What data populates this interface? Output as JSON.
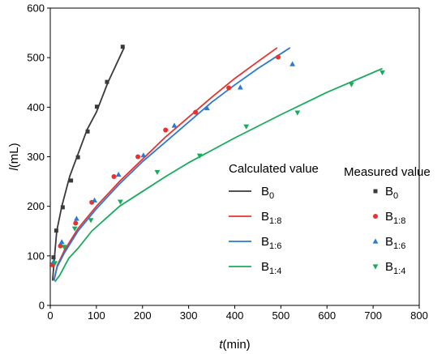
{
  "chart_data": {
    "type": "line",
    "xlabel": "t(min)",
    "ylabel": "l(mL)",
    "xlim": [
      0,
      800
    ],
    "ylim": [
      0,
      600
    ],
    "xticks": [
      0,
      100,
      200,
      300,
      400,
      500,
      600,
      700,
      800
    ],
    "yticks": [
      0,
      100,
      200,
      300,
      400,
      500,
      600
    ],
    "grid": false,
    "legend": {
      "placement": "right",
      "calculated_title": "Calculated value",
      "measured_title": "Measured value"
    },
    "series": [
      {
        "name": "B",
        "subscript": "0",
        "color": "#3a3a3a",
        "marker": "square",
        "calculated": [
          [
            5,
            50
          ],
          [
            8,
            85
          ],
          [
            14,
            150
          ],
          [
            25,
            200
          ],
          [
            42,
            260
          ],
          [
            60,
            305
          ],
          [
            80,
            355
          ],
          [
            100,
            390
          ],
          [
            125,
            450
          ],
          [
            160,
            520
          ]
        ],
        "measured": [
          [
            3,
            82
          ],
          [
            7,
            97
          ],
          [
            13,
            151
          ],
          [
            27,
            198
          ],
          [
            45,
            252
          ],
          [
            60,
            299
          ],
          [
            81,
            351
          ],
          [
            101,
            401
          ],
          [
            123,
            451
          ],
          [
            157,
            522
          ]
        ]
      },
      {
        "name": "B",
        "subscript": "1:8",
        "color": "#e8322d",
        "marker": "circle",
        "calculated": [
          [
            8,
            50
          ],
          [
            15,
            80
          ],
          [
            30,
            110
          ],
          [
            60,
            155
          ],
          [
            100,
            200
          ],
          [
            150,
            250
          ],
          [
            200,
            295
          ],
          [
            250,
            340
          ],
          [
            300,
            380
          ],
          [
            350,
            420
          ],
          [
            400,
            458
          ],
          [
            450,
            492
          ],
          [
            492,
            520
          ]
        ],
        "measured": [
          [
            5,
            82
          ],
          [
            22,
            120
          ],
          [
            55,
            166
          ],
          [
            90,
            208
          ],
          [
            138,
            260
          ],
          [
            190,
            300
          ],
          [
            250,
            354
          ],
          [
            315,
            390
          ],
          [
            387,
            439
          ],
          [
            494,
            501
          ]
        ]
      },
      {
        "name": "B",
        "subscript": "1:6",
        "color": "#2a79d4",
        "marker": "triangle-up",
        "calculated": [
          [
            8,
            50
          ],
          [
            15,
            78
          ],
          [
            30,
            105
          ],
          [
            60,
            150
          ],
          [
            100,
            195
          ],
          [
            150,
            245
          ],
          [
            200,
            290
          ],
          [
            250,
            330
          ],
          [
            300,
            370
          ],
          [
            350,
            410
          ],
          [
            400,
            445
          ],
          [
            450,
            478
          ],
          [
            520,
            520
          ]
        ],
        "measured": [
          [
            7,
            88
          ],
          [
            25,
            128
          ],
          [
            57,
            175
          ],
          [
            96,
            212
          ],
          [
            148,
            264
          ],
          [
            202,
            303
          ],
          [
            269,
            363
          ],
          [
            340,
            398
          ],
          [
            412,
            440
          ],
          [
            525,
            487
          ]
        ]
      },
      {
        "name": "B",
        "subscript": "1:4",
        "color": "#19ab5c",
        "marker": "triangle-down",
        "calculated": [
          [
            10,
            48
          ],
          [
            20,
            60
          ],
          [
            40,
            95
          ],
          [
            60,
            115
          ],
          [
            90,
            150
          ],
          [
            150,
            200
          ],
          [
            200,
            230
          ],
          [
            250,
            260
          ],
          [
            300,
            288
          ],
          [
            400,
            338
          ],
          [
            500,
            385
          ],
          [
            600,
            430
          ],
          [
            720,
            478
          ]
        ],
        "measured": [
          [
            10,
            85
          ],
          [
            30,
            118
          ],
          [
            53,
            155
          ],
          [
            88,
            172
          ],
          [
            152,
            209
          ],
          [
            232,
            269
          ],
          [
            324,
            302
          ],
          [
            425,
            361
          ],
          [
            536,
            389
          ],
          [
            653,
            446
          ],
          [
            720,
            470
          ]
        ]
      }
    ]
  }
}
